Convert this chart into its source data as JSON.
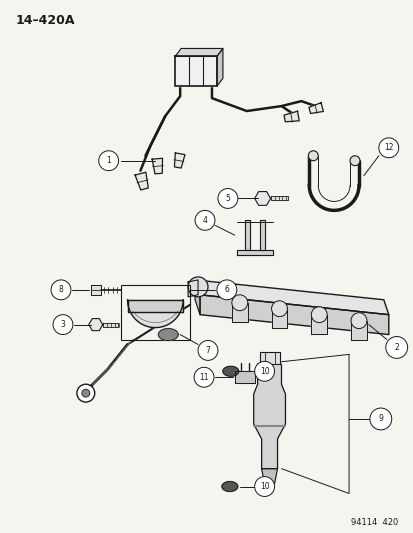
{
  "title": "14–420A",
  "footer": "94114  420",
  "background_color": "#f5f5f0",
  "line_color": "#1a1a1a",
  "fig_width": 4.14,
  "fig_height": 5.33,
  "dpi": 100,
  "label_circle_r": 0.013,
  "label_fontsize": 5.5,
  "wire_lw": 1.8,
  "connector_lw": 1.0
}
